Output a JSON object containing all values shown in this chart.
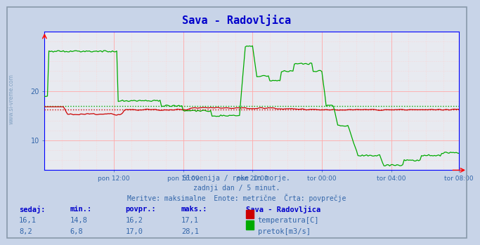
{
  "title": "Sava - Radovljica",
  "title_color": "#0000cc",
  "bg_color": "#c8d4e8",
  "plot_bg_color": "#e8eaf0",
  "border_color": "#6688aa",
  "xlabel_ticks": [
    "pon 12:00",
    "pon 16:00",
    "pon 20:00",
    "tor 00:00",
    "tor 04:00",
    "tor 08:00"
  ],
  "yticks": [
    10,
    20
  ],
  "ylim": [
    4,
    32
  ],
  "xlim": [
    0,
    287
  ],
  "avg_temp": 16.2,
  "avg_flow": 17.0,
  "grid_color": "#ffaaaa",
  "temp_color": "#cc0000",
  "flow_color": "#00aa00",
  "axis_color": "#0000ff",
  "watermark": "www.si-vreme.com",
  "footer_line1": "Slovenija / reke in morje.",
  "footer_line2": "zadnji dan / 5 minut.",
  "footer_line3": "Meritve: maksimalne  Enote: metrične  Črta: povprečje",
  "footer_color": "#3366aa",
  "table_headers": [
    "sedaj:",
    "min.:",
    "povpr.:",
    "maks.:"
  ],
  "table_row1_vals": [
    "16,1",
    "14,8",
    "16,2",
    "17,1"
  ],
  "table_row2_vals": [
    "8,2",
    "6,8",
    "17,0",
    "28,1"
  ],
  "table_station": "Sava - Radovljica",
  "table_label1": "temperatura[C]",
  "table_label2": "pretok[m3/s]",
  "table_color": "#3366aa",
  "table_header_color": "#0000cc"
}
